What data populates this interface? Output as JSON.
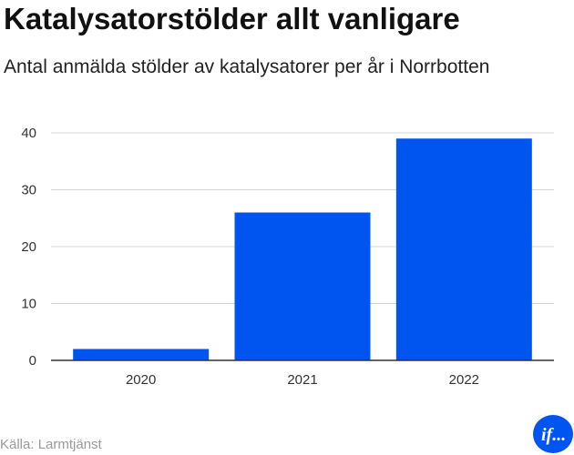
{
  "title": "Katalysatorstölder allt vanligare",
  "subtitle": "Antal anmälda stölder av katalysatorer per år i Norrbotten",
  "source": "Källa: Larmtjänst",
  "logo_text": "if...",
  "colors": {
    "bar": "#0054f0",
    "grid": "#d4d4d4",
    "axis": "#333333",
    "logo": "#0054f0"
  },
  "chart_data": {
    "type": "bar",
    "title": "Katalysatorstölder allt vanligare",
    "subtitle": "Antal anmälda stölder av katalysatorer per år i Norrbotten",
    "categories": [
      "2020",
      "2021",
      "2022"
    ],
    "values": [
      2,
      26,
      39
    ],
    "xlabel": "",
    "ylabel": "",
    "ylim": [
      0,
      40
    ],
    "yticks": [
      0,
      10,
      20,
      30,
      40
    ],
    "grid": true,
    "legend": "none"
  }
}
